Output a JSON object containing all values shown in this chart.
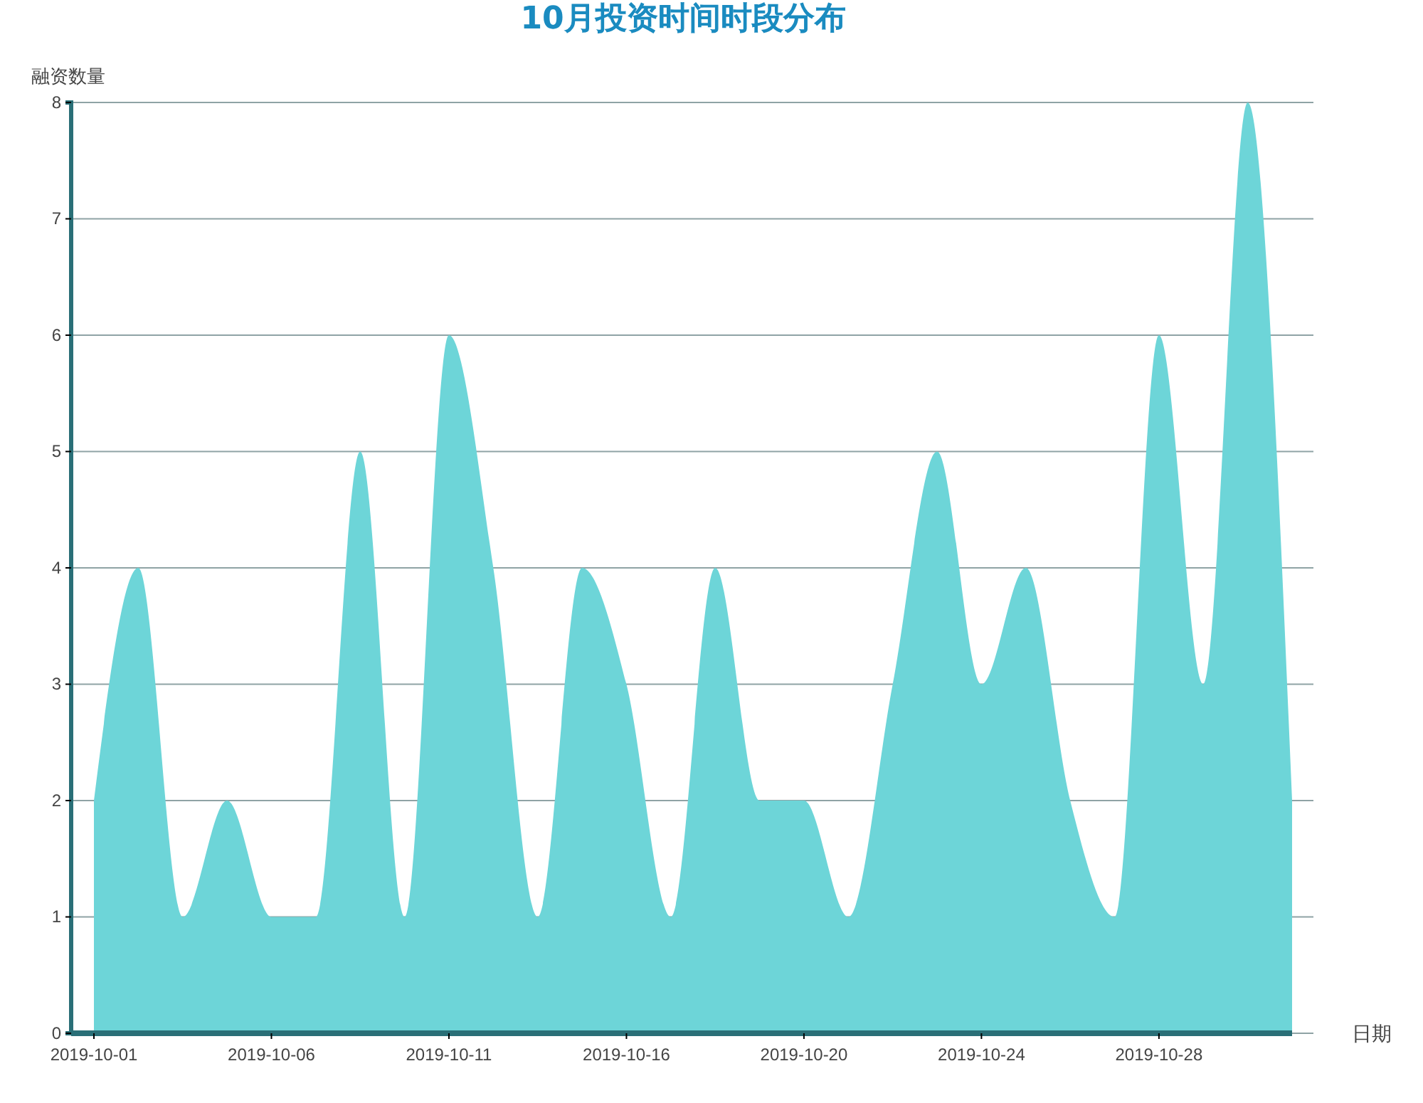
{
  "chart_data": {
    "type": "area",
    "title": "10月投资时间时段分布",
    "xlabel": "日期",
    "ylabel": "融资数量",
    "categories": [
      "2019-10-01",
      null,
      null,
      null,
      "2019-10-06",
      null,
      null,
      null,
      "2019-10-11",
      null,
      null,
      null,
      "2019-10-16",
      null,
      null,
      null,
      "2019-10-20",
      null,
      null,
      null,
      "2019-10-24",
      null,
      null,
      null,
      "2019-10-28",
      null,
      null,
      null
    ],
    "values": [
      2,
      4,
      1,
      2,
      1,
      1,
      5,
      1,
      6,
      4,
      1,
      4,
      3,
      1,
      4,
      2,
      2,
      1,
      3,
      5,
      3,
      4,
      2,
      1,
      6,
      3,
      8,
      2
    ],
    "color": "#6dd5d8",
    "ylim": [
      0,
      8
    ],
    "yticks": [
      0,
      1,
      2,
      3,
      4,
      5,
      6,
      7,
      8
    ],
    "grid": "y"
  }
}
